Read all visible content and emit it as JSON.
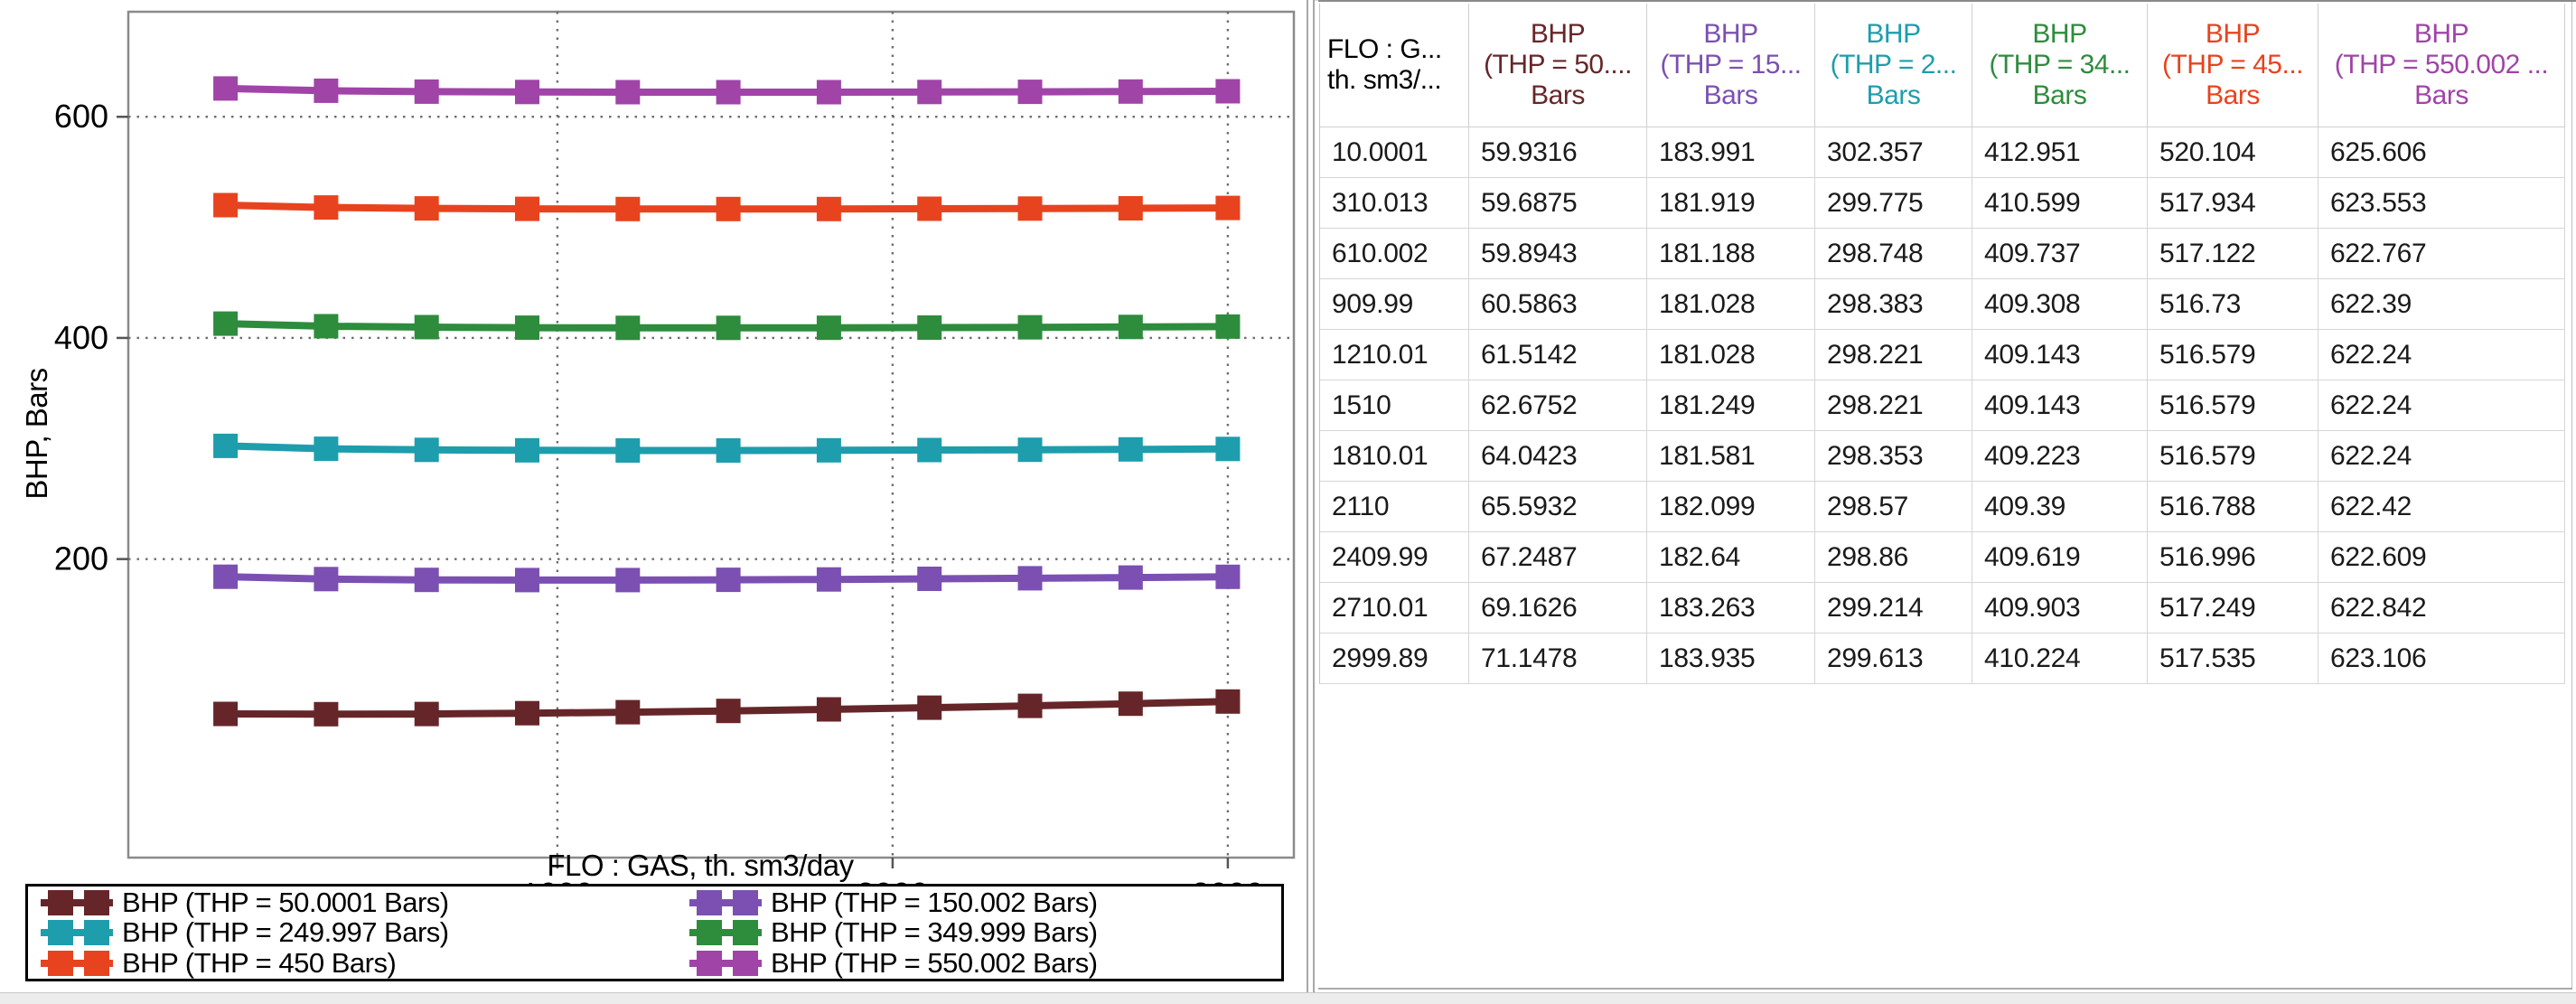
{
  "chart_data": {
    "type": "line",
    "title": "",
    "xlabel": "FLO : GAS, th. sm3/day",
    "ylabel": "BHP, Bars",
    "marker": "square",
    "grid": "dotted",
    "legend_position": "bottom",
    "x": [
      10.0001,
      310.013,
      610.002,
      909.99,
      1210.01,
      1510,
      1810.01,
      2110,
      2409.99,
      2710.01,
      2999.89
    ],
    "x_ticks": [
      1000,
      2000,
      3000
    ],
    "y_ticks": [
      200,
      400,
      600
    ],
    "xlim": [
      -280,
      3197
    ],
    "ylim": [
      -70,
      695
    ],
    "series": [
      {
        "name": "BHP (THP = 50.0001 Bars)",
        "color": "#662629",
        "values": [
          59.9316,
          59.6875,
          59.8943,
          60.5863,
          61.5142,
          62.6752,
          64.0423,
          65.5932,
          67.2487,
          69.1626,
          71.1478
        ]
      },
      {
        "name": "BHP (THP = 150.002 Bars)",
        "color": "#7B50B2",
        "values": [
          183.991,
          181.919,
          181.188,
          181.028,
          181.028,
          181.249,
          181.581,
          182.099,
          182.64,
          183.263,
          183.935
        ]
      },
      {
        "name": "BHP (THP = 249.997 Bars)",
        "color": "#1E9DAD",
        "values": [
          302.357,
          299.775,
          298.748,
          298.383,
          298.221,
          298.221,
          298.353,
          298.57,
          298.86,
          299.214,
          299.613
        ]
      },
      {
        "name": "BHP (THP = 349.999 Bars)",
        "color": "#2E8C3D",
        "values": [
          412.951,
          410.599,
          409.737,
          409.308,
          409.143,
          409.143,
          409.223,
          409.39,
          409.619,
          409.903,
          410.224
        ]
      },
      {
        "name": "BHP (THP = 450 Bars)",
        "color": "#E8431F",
        "values": [
          520.104,
          517.934,
          517.122,
          516.73,
          516.579,
          516.579,
          516.579,
          516.788,
          516.996,
          517.249,
          517.535
        ]
      },
      {
        "name": "BHP (THP = 550.002 Bars)",
        "color": "#A044A8",
        "values": [
          625.606,
          623.553,
          622.767,
          622.39,
          622.24,
          622.24,
          622.24,
          622.42,
          622.609,
          622.842,
          623.106
        ]
      }
    ]
  },
  "table": {
    "columns": [
      {
        "lines": [
          "FLO : G...",
          "th. sm3/..."
        ],
        "color": "#000000"
      },
      {
        "lines": [
          "BHP",
          "(THP = 50....",
          "Bars"
        ],
        "color": "#662629"
      },
      {
        "lines": [
          "BHP",
          "(THP = 15...",
          "Bars"
        ],
        "color": "#7B50B2"
      },
      {
        "lines": [
          "BHP",
          "(THP = 2...",
          "Bars"
        ],
        "color": "#1E9DAD"
      },
      {
        "lines": [
          "BHP",
          "(THP = 34...",
          "Bars"
        ],
        "color": "#2E8C3D"
      },
      {
        "lines": [
          "BHP",
          "(THP = 45...",
          "Bars"
        ],
        "color": "#E8431F"
      },
      {
        "lines": [
          "BHP",
          "(THP = 550.002 ...",
          "Bars"
        ],
        "color": "#A044A8"
      }
    ],
    "rows": [
      [
        "10.0001",
        "59.9316",
        "183.991",
        "302.357",
        "412.951",
        "520.104",
        "625.606"
      ],
      [
        "310.013",
        "59.6875",
        "181.919",
        "299.775",
        "410.599",
        "517.934",
        "623.553"
      ],
      [
        "610.002",
        "59.8943",
        "181.188",
        "298.748",
        "409.737",
        "517.122",
        "622.767"
      ],
      [
        "909.99",
        "60.5863",
        "181.028",
        "298.383",
        "409.308",
        "516.73",
        "622.39"
      ],
      [
        "1210.01",
        "61.5142",
        "181.028",
        "298.221",
        "409.143",
        "516.579",
        "622.24"
      ],
      [
        "1510",
        "62.6752",
        "181.249",
        "298.221",
        "409.143",
        "516.579",
        "622.24"
      ],
      [
        "1810.01",
        "64.0423",
        "181.581",
        "298.353",
        "409.223",
        "516.579",
        "622.24"
      ],
      [
        "2110",
        "65.5932",
        "182.099",
        "298.57",
        "409.39",
        "516.788",
        "622.42"
      ],
      [
        "2409.99",
        "67.2487",
        "182.64",
        "298.86",
        "409.619",
        "516.996",
        "622.609"
      ],
      [
        "2710.01",
        "69.1626",
        "183.263",
        "299.214",
        "409.903",
        "517.249",
        "622.842"
      ],
      [
        "2999.89",
        "71.1478",
        "183.935",
        "299.613",
        "410.224",
        "517.535",
        "623.106"
      ]
    ]
  }
}
